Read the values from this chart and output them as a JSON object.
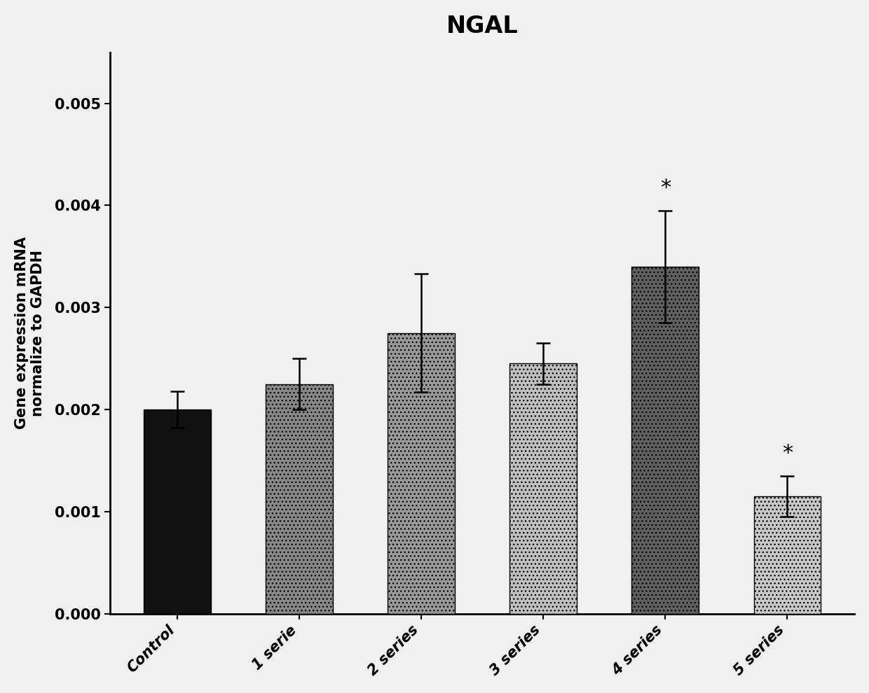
{
  "title": "NGAL",
  "ylabel": "Gene expression mRNA\nnormalize to GAPDH",
  "categories": [
    "Control",
    "1 serie",
    "2 series",
    "3 series",
    "4 series",
    "5 series"
  ],
  "values": [
    0.002,
    0.00225,
    0.00275,
    0.00245,
    0.0034,
    0.00115
  ],
  "errors": [
    0.00018,
    0.00025,
    0.00058,
    0.0002,
    0.00055,
    0.0002
  ],
  "bar_colors": [
    "#111111",
    "#888888",
    "#999999",
    "#c0c0c0",
    "#606060",
    "#c8c8c8"
  ],
  "hatch_patterns": [
    "",
    "...",
    "...",
    "...",
    "...",
    "..."
  ],
  "ylim": [
    0,
    0.0055
  ],
  "yticks": [
    0.0,
    0.001,
    0.002,
    0.003,
    0.004,
    0.005
  ],
  "ytick_labels": [
    "0.000",
    "0.001",
    "0.002",
    "0.003",
    "0.004",
    "0.005"
  ],
  "significance": [
    false,
    false,
    false,
    false,
    true,
    true
  ],
  "background_color": "#f0f0f0",
  "title_fontsize": 24,
  "label_fontsize": 15,
  "tick_fontsize": 15
}
